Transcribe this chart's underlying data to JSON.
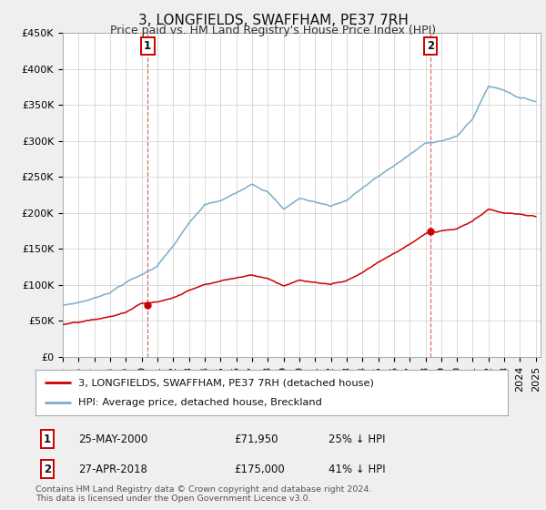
{
  "title": "3, LONGFIELDS, SWAFFHAM, PE37 7RH",
  "subtitle": "Price paid vs. HM Land Registry's House Price Index (HPI)",
  "ylim": [
    0,
    450000
  ],
  "yticks": [
    0,
    50000,
    100000,
    150000,
    200000,
    250000,
    300000,
    350000,
    400000,
    450000
  ],
  "ytick_labels": [
    "£0",
    "£50K",
    "£100K",
    "£150K",
    "£200K",
    "£250K",
    "£300K",
    "£350K",
    "£400K",
    "£450K"
  ],
  "sale1_year": 2000.38,
  "sale1_price": 71950,
  "sale1_label": "1",
  "sale1_date": "25-MAY-2000",
  "sale1_price_str": "£71,950",
  "sale1_hpi_str": "25% ↓ HPI",
  "sale2_year": 2018.32,
  "sale2_price": 175000,
  "sale2_label": "2",
  "sale2_date": "27-APR-2018",
  "sale2_price_str": "£175,000",
  "sale2_hpi_str": "41% ↓ HPI",
  "red_line_color": "#cc0000",
  "blue_line_color": "#7aadcb",
  "legend_line1": "3, LONGFIELDS, SWAFFHAM, PE37 7RH (detached house)",
  "legend_line2": "HPI: Average price, detached house, Breckland",
  "footer1": "Contains HM Land Registry data © Crown copyright and database right 2024.",
  "footer2": "This data is licensed under the Open Government Licence v3.0.",
  "bg_color": "#efefef",
  "plot_bg_color": "#ffffff",
  "grid_color": "#cccccc",
  "title_fontsize": 11,
  "subtitle_fontsize": 9,
  "tick_fontsize": 8
}
